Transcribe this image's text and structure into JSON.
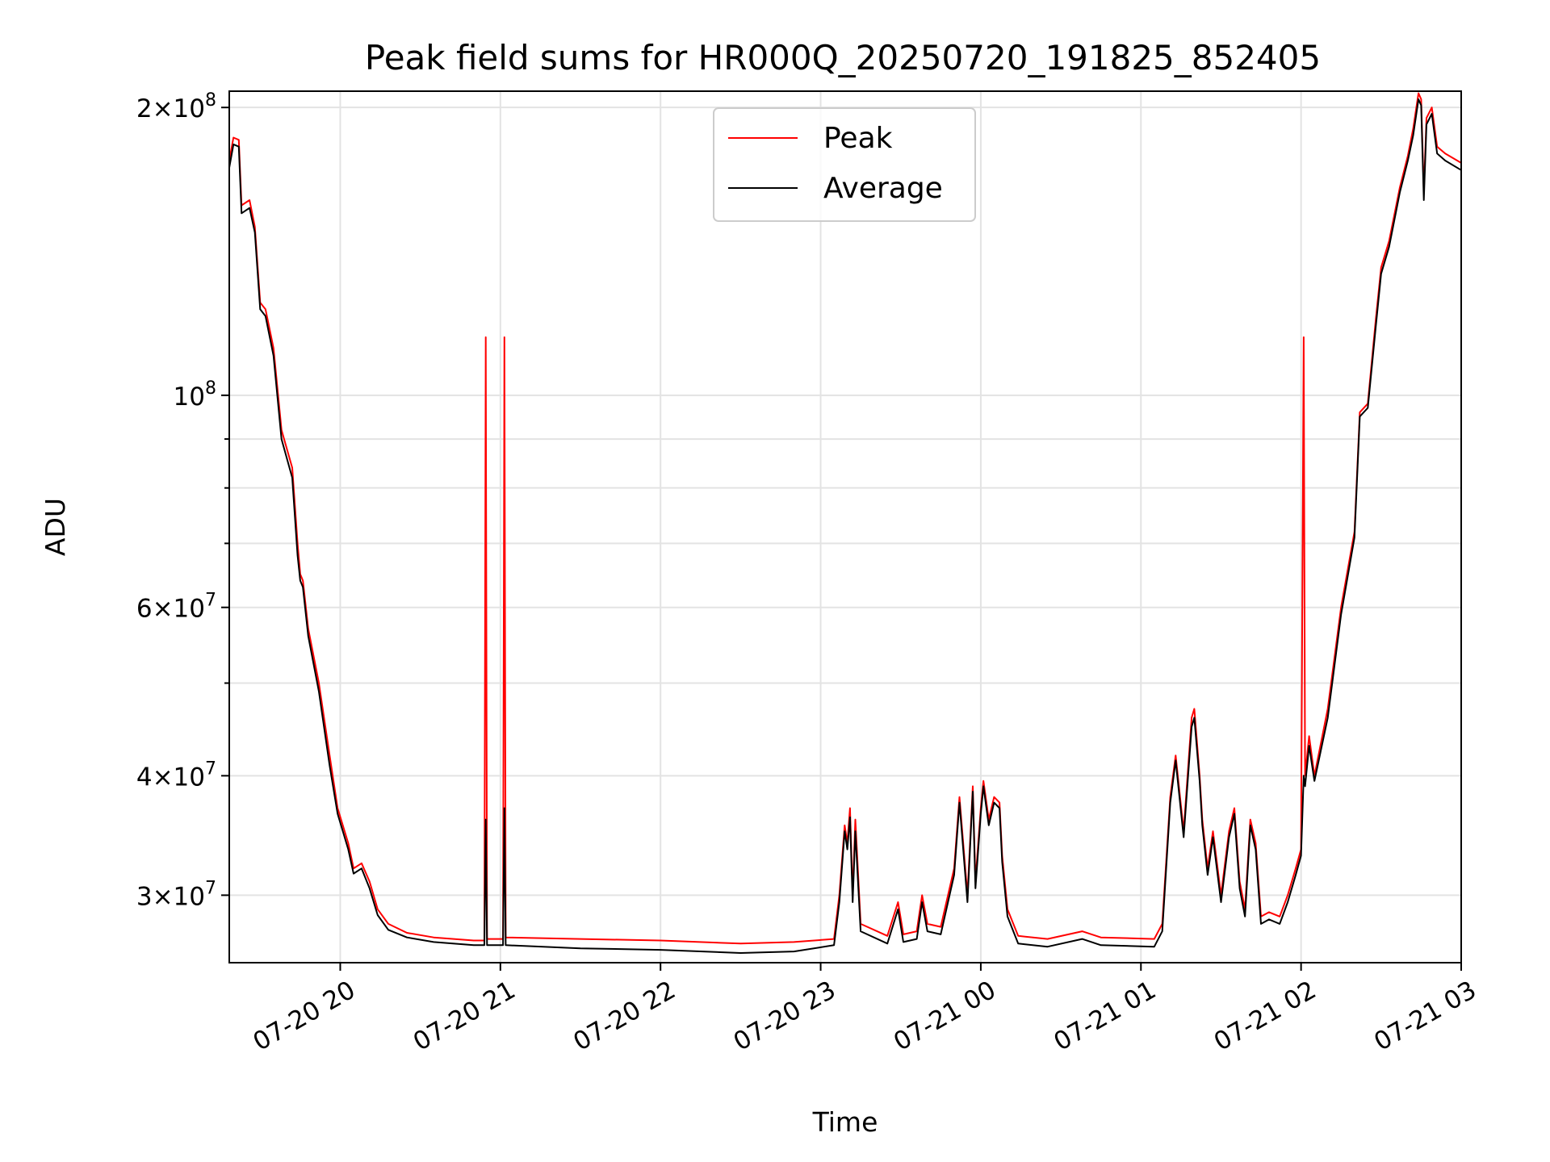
{
  "chart_data": {
    "type": "line",
    "title": "Peak field sums for HR000Q_20250720_191825_852405",
    "xlabel": "Time",
    "ylabel": "ADU",
    "yscale": "log",
    "xlim": [
      "2025-07-20 19:18:25",
      "2025-07-21 03:00:00"
    ],
    "ylim": [
      25500000,
      208000000
    ],
    "grid": true,
    "legend_position": "top-center",
    "x_ticks": [
      {
        "value": "2025-07-20 20:00",
        "label": "07-20 20"
      },
      {
        "value": "2025-07-20 21:00",
        "label": "07-20 21"
      },
      {
        "value": "2025-07-20 22:00",
        "label": "07-20 22"
      },
      {
        "value": "2025-07-20 23:00",
        "label": "07-20 23"
      },
      {
        "value": "2025-07-21 00:00",
        "label": "07-21 00"
      },
      {
        "value": "2025-07-21 01:00",
        "label": "07-21 01"
      },
      {
        "value": "2025-07-21 02:00",
        "label": "07-21 02"
      },
      {
        "value": "2025-07-21 03:00",
        "label": "07-21 03"
      }
    ],
    "y_ticks": [
      {
        "value": 30000000,
        "mantissa": "3",
        "exp": "7"
      },
      {
        "value": 40000000,
        "mantissa": "4",
        "exp": "7"
      },
      {
        "value": 60000000,
        "mantissa": "6",
        "exp": "7"
      },
      {
        "value": 100000000,
        "mantissa": "",
        "exp": "8"
      },
      {
        "value": 200000000,
        "mantissa": "2",
        "exp": "8"
      }
    ],
    "y_minor_ticks": [
      50000000,
      70000000,
      80000000,
      90000000
    ],
    "series": [
      {
        "name": "Peak",
        "color": "#ff0000",
        "points": [
          [
            "2025-07-20 19:18:25",
            176000000
          ],
          [
            "2025-07-20 19:20",
            186000000
          ],
          [
            "2025-07-20 19:22",
            185000000
          ],
          [
            "2025-07-20 19:23",
            158000000
          ],
          [
            "2025-07-20 19:26",
            160000000
          ],
          [
            "2025-07-20 19:28",
            150000000
          ],
          [
            "2025-07-20 19:30",
            125000000
          ],
          [
            "2025-07-20 19:32",
            123000000
          ],
          [
            "2025-07-20 19:35",
            112000000
          ],
          [
            "2025-07-20 19:38",
            92000000
          ],
          [
            "2025-07-20 19:42",
            84000000
          ],
          [
            "2025-07-20 19:44",
            70000000
          ],
          [
            "2025-07-20 19:45",
            65000000
          ],
          [
            "2025-07-20 19:46",
            64000000
          ],
          [
            "2025-07-20 19:48",
            57000000
          ],
          [
            "2025-07-20 19:52",
            50000000
          ],
          [
            "2025-07-20 19:56",
            42000000
          ],
          [
            "2025-07-20 19:59",
            37000000
          ],
          [
            "2025-07-20 20:03",
            34000000
          ],
          [
            "2025-07-20 20:05",
            32000000
          ],
          [
            "2025-07-20 20:08",
            32400000
          ],
          [
            "2025-07-20 20:11",
            31000000
          ],
          [
            "2025-07-20 20:14",
            29000000
          ],
          [
            "2025-07-20 20:18",
            28000000
          ],
          [
            "2025-07-20 20:25",
            27400000
          ],
          [
            "2025-07-20 20:35",
            27100000
          ],
          [
            "2025-07-20 20:50",
            26900000
          ],
          [
            "2025-07-20 20:54",
            26900000
          ],
          [
            "2025-07-20 20:54:30",
            115000000
          ],
          [
            "2025-07-20 20:55",
            27000000
          ],
          [
            "2025-07-20 21:01",
            27000000
          ],
          [
            "2025-07-20 21:01:30",
            115000000
          ],
          [
            "2025-07-20 21:02",
            27100000
          ],
          [
            "2025-07-20 21:30",
            27000000
          ],
          [
            "2025-07-20 22:00",
            26900000
          ],
          [
            "2025-07-20 22:30",
            26700000
          ],
          [
            "2025-07-20 22:50",
            26800000
          ],
          [
            "2025-07-20 23:05",
            27000000
          ],
          [
            "2025-07-20 23:07",
            30000000
          ],
          [
            "2025-07-20 23:09",
            35500000
          ],
          [
            "2025-07-20 23:10",
            34000000
          ],
          [
            "2025-07-20 23:11",
            37000000
          ],
          [
            "2025-07-20 23:12",
            30000000
          ],
          [
            "2025-07-20 23:13",
            36000000
          ],
          [
            "2025-07-20 23:15",
            28000000
          ],
          [
            "2025-07-20 23:25",
            27200000
          ],
          [
            "2025-07-20 23:29",
            29500000
          ],
          [
            "2025-07-20 23:31",
            27300000
          ],
          [
            "2025-07-20 23:36",
            27500000
          ],
          [
            "2025-07-20 23:38",
            30000000
          ],
          [
            "2025-07-20 23:40",
            28000000
          ],
          [
            "2025-07-20 23:45",
            27800000
          ],
          [
            "2025-07-20 23:50",
            32000000
          ],
          [
            "2025-07-20 23:52",
            38000000
          ],
          [
            "2025-07-20 23:55",
            30000000
          ],
          [
            "2025-07-20 23:57",
            39000000
          ],
          [
            "2025-07-20 23:58",
            31000000
          ],
          [
            "2025-07-21 00:00",
            37000000
          ],
          [
            "2025-07-21 00:01",
            39500000
          ],
          [
            "2025-07-21 00:03",
            36000000
          ],
          [
            "2025-07-21 00:05",
            38000000
          ],
          [
            "2025-07-21 00:07",
            37500000
          ],
          [
            "2025-07-21 00:08",
            33000000
          ],
          [
            "2025-07-21 00:10",
            29000000
          ],
          [
            "2025-07-21 00:14",
            27200000
          ],
          [
            "2025-07-21 00:25",
            27000000
          ],
          [
            "2025-07-21 00:38",
            27500000
          ],
          [
            "2025-07-21 00:45",
            27100000
          ],
          [
            "2025-07-21 01:05",
            27000000
          ],
          [
            "2025-07-21 01:08",
            28000000
          ],
          [
            "2025-07-21 01:11",
            38000000
          ],
          [
            "2025-07-21 01:13",
            42000000
          ],
          [
            "2025-07-21 01:16",
            35000000
          ],
          [
            "2025-07-21 01:19",
            46000000
          ],
          [
            "2025-07-21 01:20",
            47000000
          ],
          [
            "2025-07-21 01:22",
            40000000
          ],
          [
            "2025-07-21 01:23",
            36000000
          ],
          [
            "2025-07-21 01:25",
            32000000
          ],
          [
            "2025-07-21 01:27",
            35000000
          ],
          [
            "2025-07-21 01:30",
            30000000
          ],
          [
            "2025-07-21 01:33",
            35000000
          ],
          [
            "2025-07-21 01:35",
            37000000
          ],
          [
            "2025-07-21 01:37",
            31000000
          ],
          [
            "2025-07-21 01:39",
            29000000
          ],
          [
            "2025-07-21 01:41",
            36000000
          ],
          [
            "2025-07-21 01:43",
            34000000
          ],
          [
            "2025-07-21 01:45",
            28500000
          ],
          [
            "2025-07-21 01:48",
            28800000
          ],
          [
            "2025-07-21 01:52",
            28500000
          ],
          [
            "2025-07-21 01:55",
            30000000
          ],
          [
            "2025-07-21 01:58",
            32000000
          ],
          [
            "2025-07-21 02:00",
            33500000
          ],
          [
            "2025-07-21 02:01",
            115000000
          ],
          [
            "2025-07-21 02:01:30",
            40000000
          ],
          [
            "2025-07-21 02:03",
            44000000
          ],
          [
            "2025-07-21 02:05",
            40000000
          ],
          [
            "2025-07-21 02:10",
            47000000
          ],
          [
            "2025-07-21 02:15",
            60000000
          ],
          [
            "2025-07-21 02:20",
            72000000
          ],
          [
            "2025-07-21 02:22",
            96000000
          ],
          [
            "2025-07-21 02:25",
            98000000
          ],
          [
            "2025-07-21 02:28",
            120000000
          ],
          [
            "2025-07-21 02:30",
            136000000
          ],
          [
            "2025-07-21 02:33",
            145000000
          ],
          [
            "2025-07-21 02:37",
            165000000
          ],
          [
            "2025-07-21 02:40",
            178000000
          ],
          [
            "2025-07-21 02:42",
            190000000
          ],
          [
            "2025-07-21 02:44",
            207000000
          ],
          [
            "2025-07-21 02:45",
            204000000
          ],
          [
            "2025-07-21 02:46",
            163000000
          ],
          [
            "2025-07-21 02:47",
            195000000
          ],
          [
            "2025-07-21 02:49",
            200000000
          ],
          [
            "2025-07-21 02:51",
            182000000
          ],
          [
            "2025-07-21 02:54",
            179000000
          ],
          [
            "2025-07-21 03:00",
            175000000
          ]
        ]
      },
      {
        "name": "Average",
        "color": "#000000",
        "points": [
          [
            "2025-07-20 19:18:25",
            173000000
          ],
          [
            "2025-07-20 19:20",
            183000000
          ],
          [
            "2025-07-20 19:22",
            182000000
          ],
          [
            "2025-07-20 19:23",
            155000000
          ],
          [
            "2025-07-20 19:26",
            157000000
          ],
          [
            "2025-07-20 19:28",
            148000000
          ],
          [
            "2025-07-20 19:30",
            123000000
          ],
          [
            "2025-07-20 19:32",
            121000000
          ],
          [
            "2025-07-20 19:35",
            110000000
          ],
          [
            "2025-07-20 19:38",
            90000000
          ],
          [
            "2025-07-20 19:42",
            82000000
          ],
          [
            "2025-07-20 19:44",
            68000000
          ],
          [
            "2025-07-20 19:45",
            64000000
          ],
          [
            "2025-07-20 19:46",
            63000000
          ],
          [
            "2025-07-20 19:48",
            56000000
          ],
          [
            "2025-07-20 19:52",
            49000000
          ],
          [
            "2025-07-20 19:56",
            41000000
          ],
          [
            "2025-07-20 19:59",
            36500000
          ],
          [
            "2025-07-20 20:03",
            33500000
          ],
          [
            "2025-07-20 20:05",
            31600000
          ],
          [
            "2025-07-20 20:08",
            32000000
          ],
          [
            "2025-07-20 20:11",
            30500000
          ],
          [
            "2025-07-20 20:14",
            28600000
          ],
          [
            "2025-07-20 20:18",
            27600000
          ],
          [
            "2025-07-20 20:25",
            27100000
          ],
          [
            "2025-07-20 20:35",
            26800000
          ],
          [
            "2025-07-20 20:50",
            26600000
          ],
          [
            "2025-07-20 20:54",
            26600000
          ],
          [
            "2025-07-20 20:54:30",
            36000000
          ],
          [
            "2025-07-20 20:55",
            26600000
          ],
          [
            "2025-07-20 21:01",
            26600000
          ],
          [
            "2025-07-20 21:01:30",
            37000000
          ],
          [
            "2025-07-20 21:02",
            26600000
          ],
          [
            "2025-07-20 21:30",
            26400000
          ],
          [
            "2025-07-20 22:00",
            26300000
          ],
          [
            "2025-07-20 22:30",
            26100000
          ],
          [
            "2025-07-20 22:50",
            26200000
          ],
          [
            "2025-07-20 23:05",
            26600000
          ],
          [
            "2025-07-20 23:07",
            29500000
          ],
          [
            "2025-07-20 23:09",
            35000000
          ],
          [
            "2025-07-20 23:10",
            33500000
          ],
          [
            "2025-07-20 23:11",
            36200000
          ],
          [
            "2025-07-20 23:12",
            29500000
          ],
          [
            "2025-07-20 23:13",
            35000000
          ],
          [
            "2025-07-20 23:15",
            27500000
          ],
          [
            "2025-07-20 23:25",
            26700000
          ],
          [
            "2025-07-20 23:29",
            29000000
          ],
          [
            "2025-07-20 23:31",
            26800000
          ],
          [
            "2025-07-20 23:36",
            27000000
          ],
          [
            "2025-07-20 23:38",
            29500000
          ],
          [
            "2025-07-20 23:40",
            27500000
          ],
          [
            "2025-07-20 23:45",
            27300000
          ],
          [
            "2025-07-20 23:50",
            31500000
          ],
          [
            "2025-07-20 23:52",
            37500000
          ],
          [
            "2025-07-20 23:55",
            29500000
          ],
          [
            "2025-07-20 23:57",
            38500000
          ],
          [
            "2025-07-20 23:58",
            30500000
          ],
          [
            "2025-07-21 00:00",
            36500000
          ],
          [
            "2025-07-21 00:01",
            39000000
          ],
          [
            "2025-07-21 00:03",
            35500000
          ],
          [
            "2025-07-21 00:05",
            37500000
          ],
          [
            "2025-07-21 00:07",
            37000000
          ],
          [
            "2025-07-21 00:08",
            32500000
          ],
          [
            "2025-07-21 00:10",
            28500000
          ],
          [
            "2025-07-21 00:14",
            26700000
          ],
          [
            "2025-07-21 00:25",
            26500000
          ],
          [
            "2025-07-21 00:38",
            27000000
          ],
          [
            "2025-07-21 00:45",
            26600000
          ],
          [
            "2025-07-21 01:05",
            26500000
          ],
          [
            "2025-07-21 01:08",
            27500000
          ],
          [
            "2025-07-21 01:11",
            37500000
          ],
          [
            "2025-07-21 01:13",
            41500000
          ],
          [
            "2025-07-21 01:16",
            34500000
          ],
          [
            "2025-07-21 01:19",
            45000000
          ],
          [
            "2025-07-21 01:20",
            46000000
          ],
          [
            "2025-07-21 01:22",
            39500000
          ],
          [
            "2025-07-21 01:23",
            35500000
          ],
          [
            "2025-07-21 01:25",
            31500000
          ],
          [
            "2025-07-21 01:27",
            34500000
          ],
          [
            "2025-07-21 01:30",
            29500000
          ],
          [
            "2025-07-21 01:33",
            34500000
          ],
          [
            "2025-07-21 01:35",
            36500000
          ],
          [
            "2025-07-21 01:37",
            30500000
          ],
          [
            "2025-07-21 01:39",
            28500000
          ],
          [
            "2025-07-21 01:41",
            35500000
          ],
          [
            "2025-07-21 01:43",
            33500000
          ],
          [
            "2025-07-21 01:45",
            28000000
          ],
          [
            "2025-07-21 01:48",
            28300000
          ],
          [
            "2025-07-21 01:52",
            28000000
          ],
          [
            "2025-07-21 01:55",
            29500000
          ],
          [
            "2025-07-21 01:58",
            31500000
          ],
          [
            "2025-07-21 02:00",
            33000000
          ],
          [
            "2025-07-21 02:01",
            40000000
          ],
          [
            "2025-07-21 02:01:30",
            39000000
          ],
          [
            "2025-07-21 02:03",
            43000000
          ],
          [
            "2025-07-21 02:05",
            39500000
          ],
          [
            "2025-07-21 02:10",
            46000000
          ],
          [
            "2025-07-21 02:15",
            59000000
          ],
          [
            "2025-07-21 02:20",
            71000000
          ],
          [
            "2025-07-21 02:22",
            95000000
          ],
          [
            "2025-07-21 02:25",
            97000000
          ],
          [
            "2025-07-21 02:28",
            118000000
          ],
          [
            "2025-07-21 02:30",
            134000000
          ],
          [
            "2025-07-21 02:33",
            143000000
          ],
          [
            "2025-07-21 02:37",
            163000000
          ],
          [
            "2025-07-21 02:40",
            176000000
          ],
          [
            "2025-07-21 02:42",
            187000000
          ],
          [
            "2025-07-21 02:44",
            204000000
          ],
          [
            "2025-07-21 02:45",
            201000000
          ],
          [
            "2025-07-21 02:46",
            160000000
          ],
          [
            "2025-07-21 02:47",
            192000000
          ],
          [
            "2025-07-21 02:49",
            197000000
          ],
          [
            "2025-07-21 02:51",
            179000000
          ],
          [
            "2025-07-21 02:54",
            176000000
          ],
          [
            "2025-07-21 03:00",
            172000000
          ]
        ]
      }
    ]
  }
}
